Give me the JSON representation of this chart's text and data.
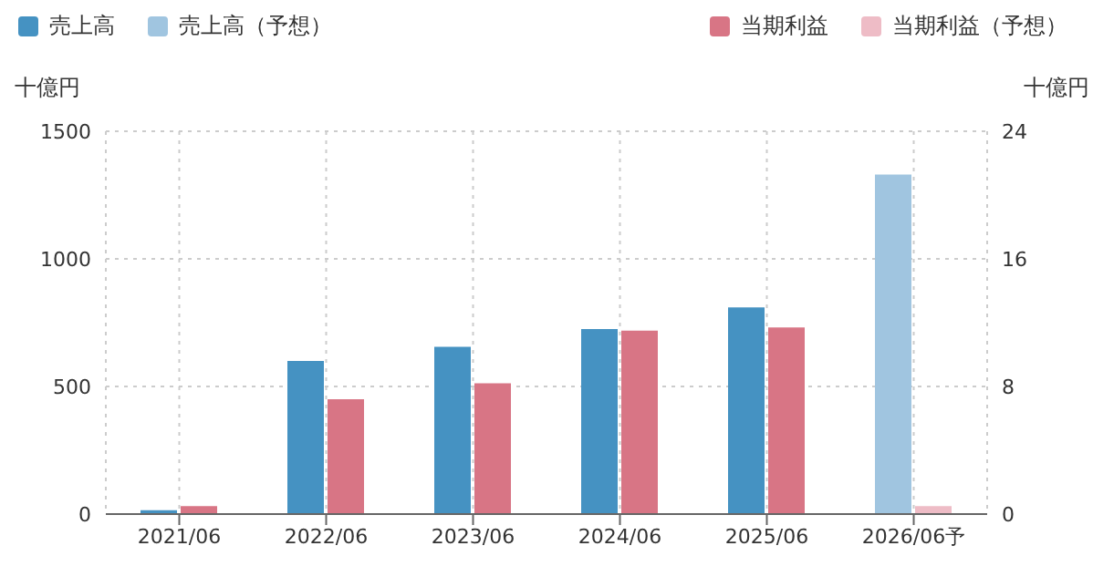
{
  "chart_data": {
    "type": "bar",
    "categories": [
      "2021/06",
      "2022/06",
      "2023/06",
      "2024/06",
      "2025/06",
      "2026/06予"
    ],
    "series": [
      {
        "name": "売上高",
        "color": "#4592c2",
        "values": [
          15,
          600,
          655,
          725,
          810,
          null
        ]
      },
      {
        "name": "売上高（予想）",
        "color": "#a0c5e0",
        "values": [
          null,
          null,
          null,
          null,
          null,
          1330
        ]
      },
      {
        "name": "当期利益",
        "color": "#d87585",
        "axis": "y2",
        "values": [
          0.5,
          7.2,
          8.2,
          11.5,
          11.7,
          null
        ]
      },
      {
        "name": "当期利益（予想）",
        "color": "#eebcc6",
        "axis": "y2",
        "values": [
          null,
          null,
          null,
          null,
          null,
          0.5
        ]
      }
    ],
    "ylabel": "十億円",
    "y2label": "十億円",
    "ylim": [
      0,
      1500
    ],
    "yticks": [
      0,
      500,
      1000,
      1500
    ],
    "y2lim": [
      0,
      24
    ],
    "y2ticks": [
      0,
      8,
      16,
      24
    ],
    "grid": true,
    "legend": "top"
  }
}
